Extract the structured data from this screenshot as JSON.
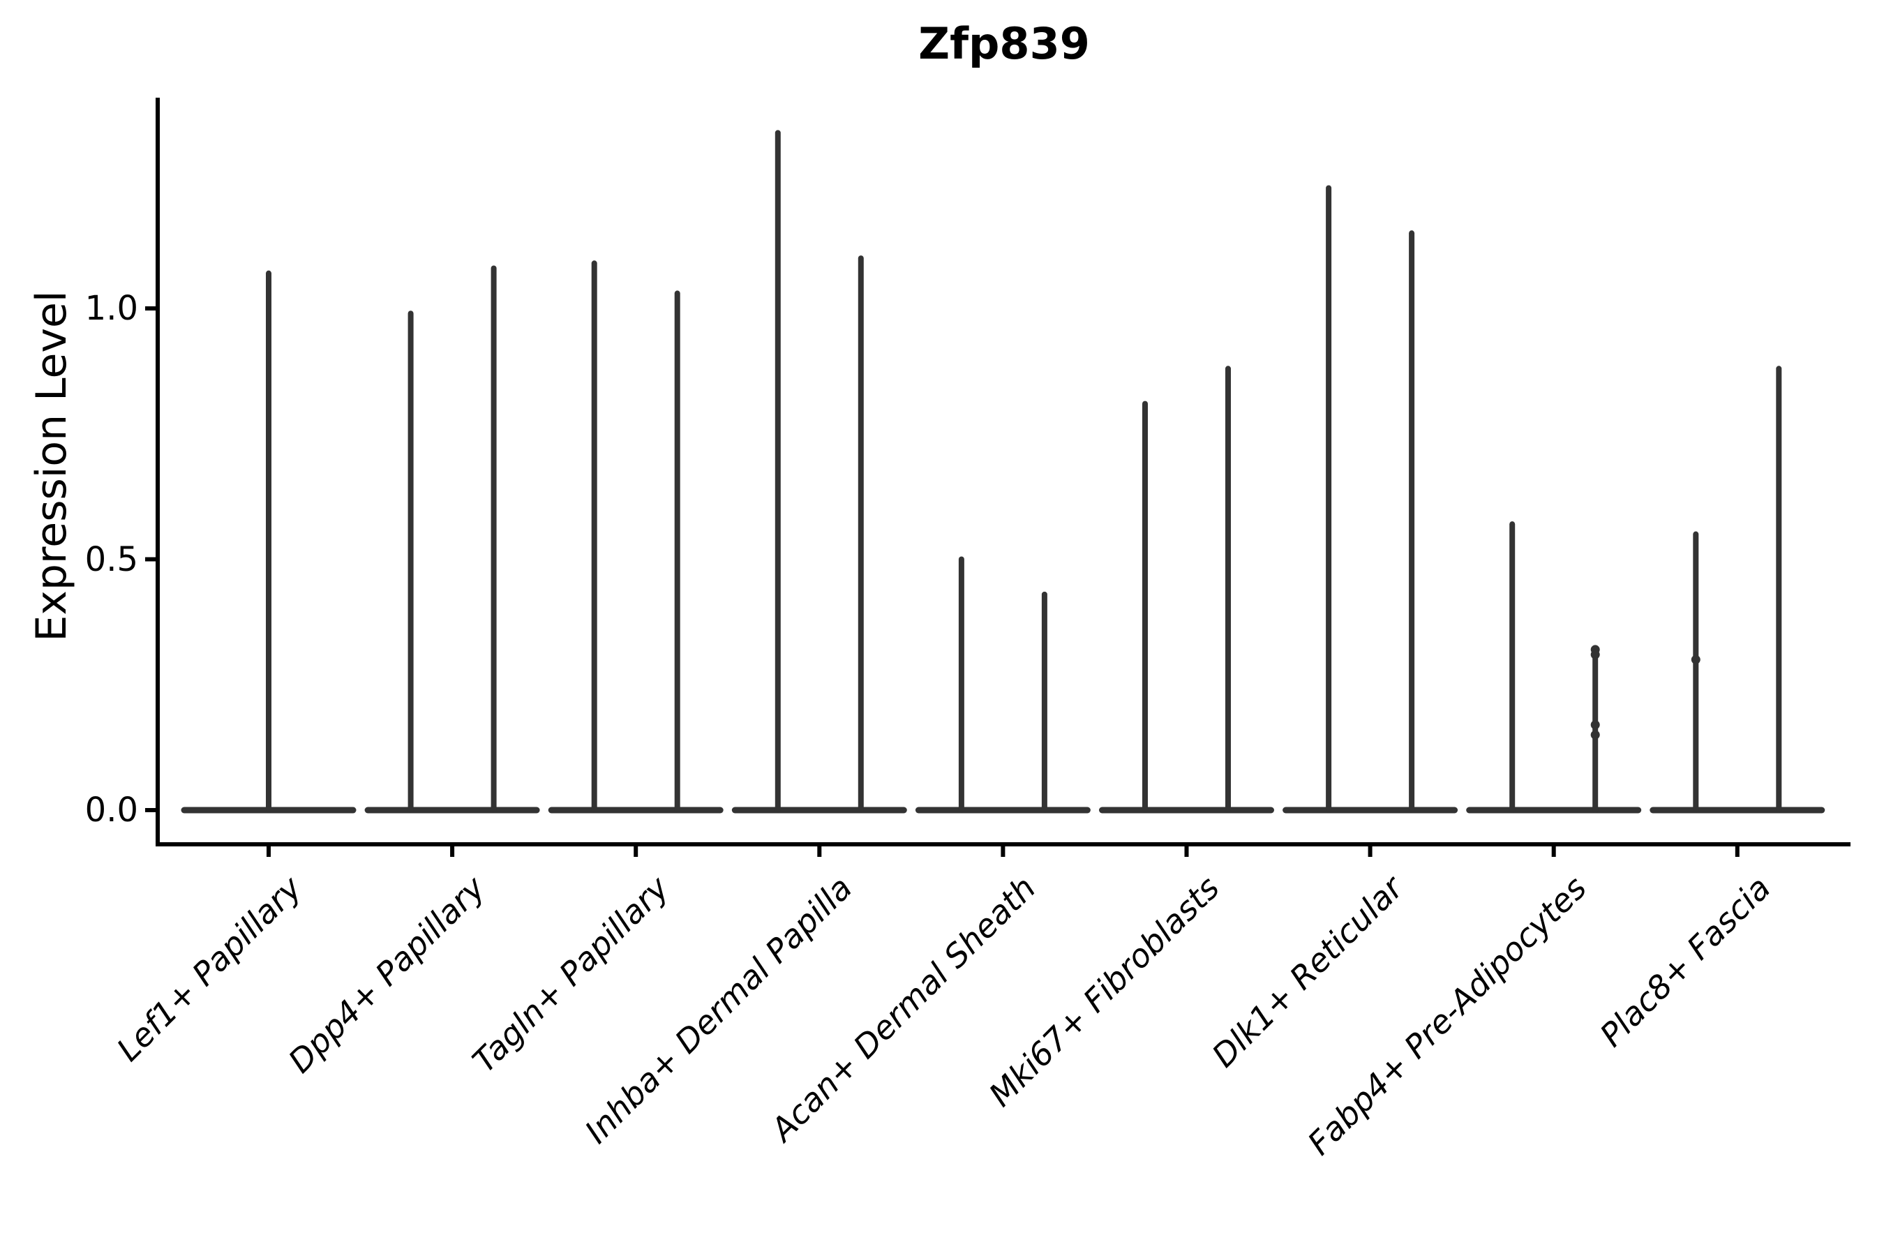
{
  "figure": {
    "background": "#ffffff"
  },
  "chart_data": {
    "type": "violin",
    "title": "Zfp839",
    "ylabel": "Expression Level",
    "xlabel": "",
    "ylim": [
      -0.07,
      1.42
    ],
    "grid": false,
    "legend": null,
    "violin_color": "#333333",
    "axis_color": "#000000",
    "text_color": "#000000",
    "yticks": [
      {
        "value": 0.0,
        "label": "0.0"
      },
      {
        "value": 0.5,
        "label": "0.5"
      },
      {
        "value": 1.0,
        "label": "1.0"
      }
    ],
    "categories": [
      {
        "label": "Lef1+ Papillary",
        "violins": [
          {
            "max": 1.07,
            "dots": []
          }
        ]
      },
      {
        "label": "Dpp4+ Papillary",
        "violins": [
          {
            "max": 0.99,
            "dots": []
          },
          {
            "max": 1.08,
            "dots": []
          }
        ]
      },
      {
        "label": "Tagln+ Papillary",
        "violins": [
          {
            "max": 1.09,
            "dots": []
          },
          {
            "max": 1.03,
            "dots": []
          }
        ]
      },
      {
        "label": "Inhba+ Dermal Papilla",
        "violins": [
          {
            "max": 1.35,
            "dots": []
          },
          {
            "max": 1.1,
            "dots": []
          }
        ]
      },
      {
        "label": "Acan+ Dermal Sheath",
        "violins": [
          {
            "max": 0.5,
            "dots": []
          },
          {
            "max": 0.43,
            "dots": []
          }
        ]
      },
      {
        "label": "Mki67+ Fibroblasts",
        "violins": [
          {
            "max": 0.81,
            "dots": []
          },
          {
            "max": 0.88,
            "dots": []
          }
        ]
      },
      {
        "label": "Dlk1+ Reticular",
        "violins": [
          {
            "max": 1.24,
            "dots": []
          },
          {
            "max": 1.15,
            "dots": []
          }
        ]
      },
      {
        "label": "Fabp4+ Pre-Adipocytes",
        "violins": [
          {
            "max": 0.57,
            "dots": []
          },
          {
            "max": 0.32,
            "dots": [
              0.32,
              0.31,
              0.17,
              0.15
            ]
          }
        ]
      },
      {
        "label": "Plac8+ Fascia",
        "violins": [
          {
            "max": 0.55,
            "dots": [
              0.3
            ]
          },
          {
            "max": 0.88,
            "dots": []
          }
        ]
      }
    ]
  }
}
